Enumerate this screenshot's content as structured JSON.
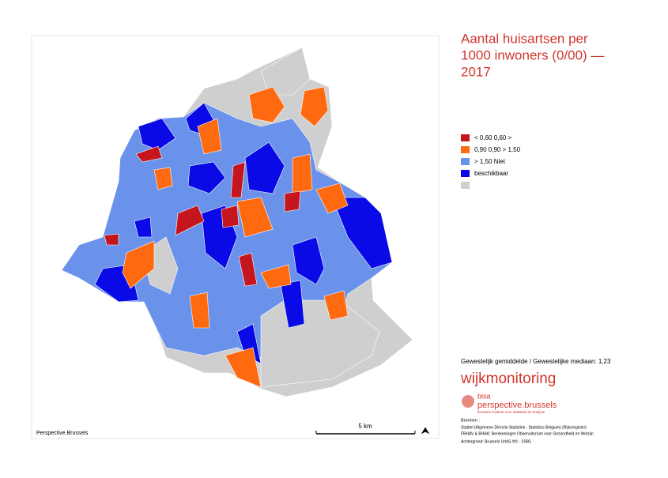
{
  "title": [
    "Aantal huisartsen per",
    "1000 inwoners (0/00) —",
    "2017"
  ],
  "legend": [
    "<  0,60  0,60  >",
    "0,90 0,90 > 1,50",
    ">    1,50    Niet",
    "beschikbaar"
  ],
  "summary": "Gewestelijk gemiddelde / Gewestelijke mediaan: 1,23",
  "brand": "wijkmonitoring",
  "logo": {
    "short": "bisa",
    "name": "perspective.brussels",
    "tagline": "brussels instituut voor statistiek en analyse"
  },
  "sources": {
    "heading": "Bronnen :",
    "lines": [
      "Statbel (Algemene Directie Statistiek - Statistics Belgium) (Rijksregister)",
      "FBHAV & BHAK; Berekeningen Observatorium voor Gezondheid en Welzijn"
    ],
    "background": "Achtergrond: Brussels UrbIS ®© - CIBG"
  },
  "map": {
    "credit": "Perspective.Brussels",
    "scale": "5 km"
  }
}
